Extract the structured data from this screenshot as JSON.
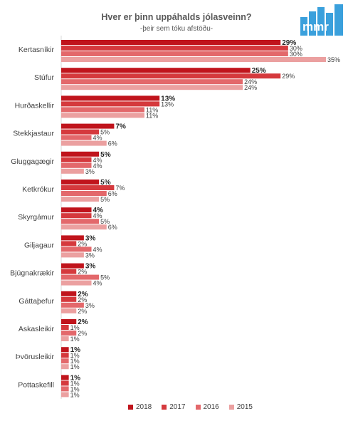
{
  "header": {
    "title": "Hver er þinn uppáhalds jólasveinn?",
    "subtitle": "-þeir sem tóku afstöðu-",
    "logo_text": "mmr"
  },
  "colors": {
    "2018": "#c0141c",
    "2017": "#d5393d",
    "2016": "#e3686b",
    "2015": "#eba0a0",
    "logo": "#3aa0dc"
  },
  "chart_data": {
    "type": "bar",
    "orientation": "horizontal",
    "title": "Hver er þinn uppáhalds jólasveinn?",
    "subtitle": "-þeir sem tóku afstöðu-",
    "categories": [
      "Kertasníkir",
      "Stúfur",
      "Hurðaskellir",
      "Stekkjastaur",
      "Gluggagægir",
      "Ketkrókur",
      "Skyrgámur",
      "Giljagaur",
      "Bjúgnakrækir",
      "Gáttaþefur",
      "Askasleikir",
      "Þvörusleikir",
      "Pottaskefill"
    ],
    "series": [
      {
        "name": "2018",
        "values": [
          29,
          25,
          13,
          7,
          5,
          5,
          4,
          3,
          3,
          2,
          2,
          1,
          1
        ],
        "labels": [
          "29%",
          "25%",
          "13%",
          "7%",
          "5%",
          "5%",
          "4%",
          "3%",
          "3%",
          "2%",
          "2%",
          "1%",
          "1%"
        ]
      },
      {
        "name": "2017",
        "values": [
          30,
          29,
          13,
          5,
          4,
          7,
          4,
          2,
          2,
          2,
          1,
          1,
          1
        ],
        "labels": [
          "30%",
          "29%",
          "13%",
          "5%",
          "4%",
          "7%",
          "4%",
          "2%",
          "2%",
          "2%",
          "1%",
          "1%",
          "1%"
        ]
      },
      {
        "name": "2016",
        "values": [
          30,
          24,
          11,
          4,
          4,
          6,
          5,
          4,
          5,
          3,
          2,
          1,
          1
        ],
        "labels": [
          "30%",
          "24%",
          "11%",
          "4%",
          "4%",
          "6%",
          "5%",
          "4%",
          "5%",
          "3%",
          "2%",
          "1%",
          "1%"
        ]
      },
      {
        "name": "2015",
        "values": [
          35,
          24,
          11,
          6,
          3,
          5,
          6,
          3,
          4,
          2,
          1,
          1,
          1
        ],
        "labels": [
          "35%",
          "24%",
          "11%",
          "6%",
          "3%",
          "5%",
          "6%",
          "3%",
          "4%",
          "2%",
          "1%",
          "1%",
          "1%"
        ]
      }
    ],
    "xlim": [
      0,
      36
    ],
    "legend": "bottom",
    "grid": false
  }
}
